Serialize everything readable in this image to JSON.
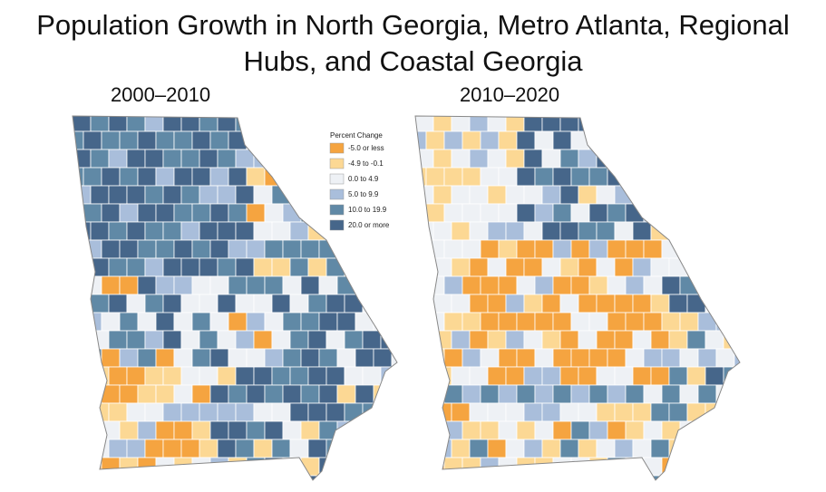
{
  "title": "Population Growth in North Georgia, Metro Atlanta, Regional Hubs, and Coastal Georgia",
  "panels": [
    {
      "label": "2000–2010"
    },
    {
      "label": "2010–2020"
    }
  ],
  "legend": {
    "title": "Percent Change",
    "items": [
      {
        "label": "-5.0 or less",
        "color": "#f5a440"
      },
      {
        "label": "-4.9 to -0.1",
        "color": "#fcd894"
      },
      {
        "label": "0.0 to 4.9",
        "color": "#eef1f5"
      },
      {
        "label": "5.0 to 9.9",
        "color": "#a9bedb"
      },
      {
        "label": "10.0 to 19.9",
        "color": "#6089a6"
      },
      {
        "label": "20.0 or more",
        "color": "#46668a"
      }
    ]
  }
}
